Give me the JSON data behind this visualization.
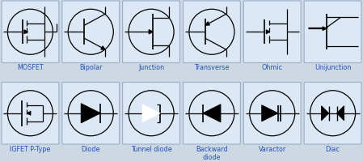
{
  "bg_color": "#cdd8e3",
  "card_color": "#dce8f5",
  "card_border_color": "#9ab0c8",
  "symbol_color": "#000000",
  "label_color": "#2255bb",
  "label_fontsize": 5.8,
  "row1_labels": [
    "MOSFET",
    "Bipolar",
    "Junction",
    "Transverse",
    "Ohmic",
    "Unijunction"
  ],
  "row2_labels": [
    "IGFET P-Type",
    "Diode",
    "Tunnel diode",
    "Backward\ndiode",
    "Varactor",
    "Diac"
  ]
}
